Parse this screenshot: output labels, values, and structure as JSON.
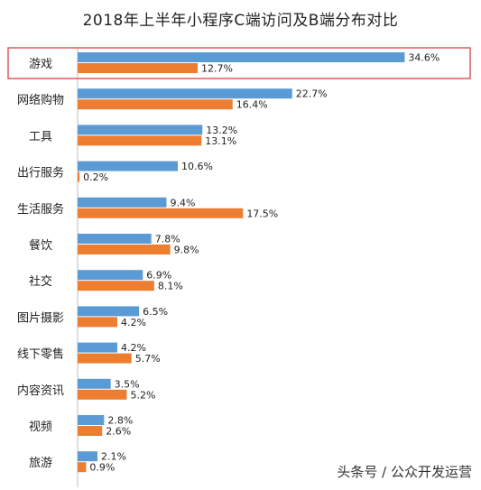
{
  "chart_data": {
    "type": "bar",
    "orientation": "horizontal",
    "title": "2018年上半年小程序C端访问及B端分布对比",
    "categories": [
      "游戏",
      "网络购物",
      "工具",
      "出行服务",
      "生活服务",
      "餐饮",
      "社交",
      "图片摄影",
      "线下零售",
      "内容资讯",
      "视频",
      "旅游"
    ],
    "series": [
      {
        "color": "#5b9bd5",
        "values": [
          34.6,
          22.7,
          13.2,
          10.6,
          9.4,
          7.8,
          6.9,
          6.5,
          4.2,
          3.5,
          2.8,
          2.1
        ],
        "labels": [
          "34.6%",
          "22.7%",
          "13.2%",
          "10.6%",
          "9.4%",
          "7.8%",
          "6.9%",
          "6.5%",
          "4.2%",
          "3.5%",
          "2.8%",
          "2.1%"
        ]
      },
      {
        "color": "#ed7d31",
        "values": [
          12.7,
          16.4,
          13.1,
          0.2,
          17.5,
          9.8,
          8.1,
          4.2,
          5.7,
          5.2,
          2.6,
          0.9
        ],
        "labels": [
          "12.7%",
          "16.4%",
          "13.1%",
          "0.2%",
          "17.5%",
          "9.8%",
          "8.1%",
          "4.2%",
          "5.7%",
          "5.2%",
          "2.6%",
          "0.9%"
        ]
      }
    ],
    "xlim": [
      0,
      40
    ],
    "grid": false,
    "legend": "none",
    "highlight_category": "游戏",
    "highlight_color": "#e05a5a"
  },
  "watermark": "头条号 / 公众开发运营"
}
